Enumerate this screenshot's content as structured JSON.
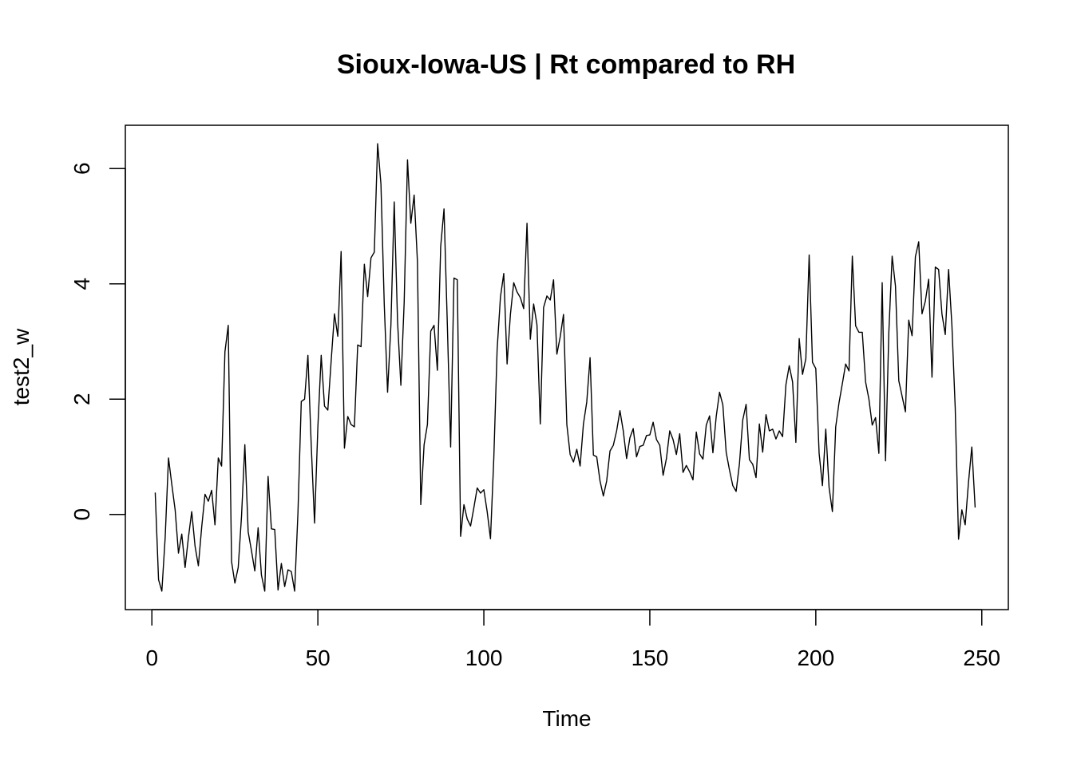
{
  "chart_data": {
    "type": "line",
    "title": "Sioux-Iowa-US | Rt compared to RH",
    "xlabel": "Time",
    "ylabel": "test2_w",
    "xlim": [
      -8,
      258
    ],
    "ylim": [
      -1.65,
      6.75
    ],
    "x_ticks": [
      0,
      50,
      100,
      150,
      200,
      250
    ],
    "y_ticks": [
      0,
      2,
      4,
      6
    ],
    "grid": false,
    "legend": "none",
    "line_color": "#000000",
    "x_start": 1,
    "values": [
      0.38,
      -1.13,
      -1.33,
      -0.4,
      0.98,
      0.52,
      0.08,
      -0.67,
      -0.34,
      -0.92,
      -0.4,
      0.05,
      -0.55,
      -0.89,
      -0.22,
      0.35,
      0.23,
      0.42,
      -0.18,
      0.98,
      0.84,
      2.82,
      3.28,
      -0.82,
      -1.19,
      -0.92,
      -0.03,
      1.21,
      -0.3,
      -0.63,
      -0.98,
      -0.23,
      -1.05,
      -1.33,
      0.66,
      -0.25,
      -0.26,
      -1.31,
      -0.85,
      -1.25,
      -0.96,
      -0.99,
      -1.33,
      0.03,
      1.96,
      2.0,
      2.76,
      1.2,
      -0.15,
      1.52,
      2.76,
      1.88,
      1.81,
      2.66,
      3.48,
      3.09,
      4.56,
      1.15,
      1.7,
      1.56,
      1.52,
      2.94,
      2.91,
      4.34,
      3.78,
      4.45,
      4.55,
      6.43,
      5.73,
      3.64,
      2.12,
      3.28,
      5.42,
      3.35,
      2.24,
      3.68,
      6.15,
      5.05,
      5.54,
      4.38,
      0.17,
      1.21,
      1.56,
      3.18,
      3.28,
      2.5,
      4.65,
      5.3,
      3.29,
      1.17,
      4.1,
      4.07,
      -0.38,
      0.17,
      -0.08,
      -0.2,
      0.12,
      0.46,
      0.37,
      0.43,
      0.05,
      -0.42,
      0.98,
      2.86,
      3.77,
      4.18,
      2.61,
      3.47,
      4.02,
      3.86,
      3.76,
      3.57,
      5.05,
      3.04,
      3.65,
      3.29,
      1.57,
      3.59,
      3.79,
      3.72,
      4.07,
      2.78,
      3.08,
      3.47,
      1.56,
      1.04,
      0.91,
      1.13,
      0.84,
      1.57,
      1.95,
      2.72,
      1.03,
      1.0,
      0.58,
      0.32,
      0.58,
      1.1,
      1.2,
      1.45,
      1.8,
      1.45,
      0.97,
      1.33,
      1.49,
      1.0,
      1.18,
      1.2,
      1.37,
      1.38,
      1.6,
      1.3,
      1.2,
      0.68,
      0.97,
      1.45,
      1.3,
      1.04,
      1.4,
      0.73,
      0.85,
      0.74,
      0.6,
      1.43,
      1.05,
      0.96,
      1.55,
      1.71,
      1.07,
      1.7,
      2.12,
      1.9,
      1.08,
      0.77,
      0.5,
      0.4,
      0.88,
      1.64,
      1.91,
      0.95,
      0.87,
      0.64,
      1.57,
      1.08,
      1.73,
      1.45,
      1.48,
      1.31,
      1.45,
      1.35,
      2.25,
      2.58,
      2.3,
      1.25,
      3.05,
      2.43,
      2.7,
      4.5,
      2.64,
      2.53,
      1.06,
      0.5,
      1.48,
      0.47,
      0.05,
      1.52,
      1.94,
      2.27,
      2.61,
      2.49,
      4.48,
      3.27,
      3.16,
      3.16,
      2.3,
      2.0,
      1.55,
      1.68,
      1.06,
      4.02,
      0.93,
      3.16,
      4.48,
      3.96,
      2.32,
      2.05,
      1.78,
      3.37,
      3.1,
      4.47,
      4.73,
      3.48,
      3.7,
      4.08,
      2.38,
      4.29,
      4.25,
      3.48,
      3.12,
      4.25,
      3.28,
      1.85,
      -0.43,
      0.08,
      -0.18,
      0.56,
      1.17,
      0.12
    ]
  }
}
